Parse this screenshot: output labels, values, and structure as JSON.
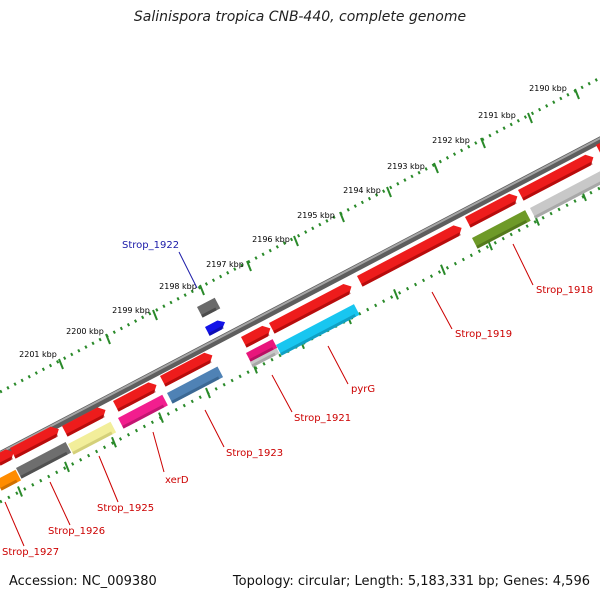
{
  "title": "Salinispora tropica CNB-440, complete genome",
  "footer": {
    "accession": "Accession: NC_009380",
    "summary": "Topology: circular; Length: 5,183,331 bp; Genes: 4,596"
  },
  "colors": {
    "cds": "#ee1c1c",
    "backbone": "#7a7a7a",
    "tick": "#2a8a2a",
    "label_red": "#cc0000",
    "label_blue": "#1a1aa8"
  },
  "scale_ticks": [
    {
      "label": "2190 kbp"
    },
    {
      "label": "2191 kbp"
    },
    {
      "label": "2192 kbp"
    },
    {
      "label": "2193 kbp"
    },
    {
      "label": "2194 kbp"
    },
    {
      "label": "2195 kbp"
    },
    {
      "label": "2196 kbp"
    },
    {
      "label": "2197 kbp"
    },
    {
      "label": "2198 kbp"
    },
    {
      "label": "2199 kbp"
    },
    {
      "label": "2200 kbp"
    },
    {
      "label": "2201 kbp"
    }
  ],
  "gene_labels": [
    {
      "text": "Strop_1918",
      "color": "#cc0000"
    },
    {
      "text": "Strop_1919",
      "color": "#cc0000"
    },
    {
      "text": "pyrG",
      "color": "#cc0000"
    },
    {
      "text": "Strop_1921",
      "color": "#cc0000"
    },
    {
      "text": "Strop_1922",
      "color": "#1a1aa8"
    },
    {
      "text": "Strop_1923",
      "color": "#cc0000"
    },
    {
      "text": "xerD",
      "color": "#cc0000"
    },
    {
      "text": "Strop_1925",
      "color": "#cc0000"
    },
    {
      "text": "Strop_1926",
      "color": "#cc0000"
    },
    {
      "text": "Strop_1927",
      "color": "#cc0000"
    }
  ]
}
